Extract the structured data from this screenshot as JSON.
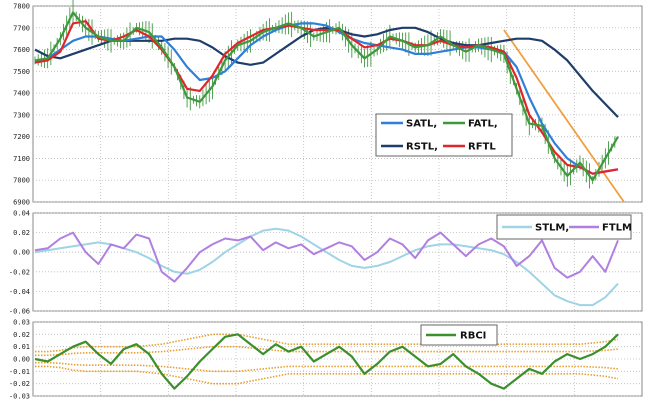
{
  "colors": {
    "satl": "#2f7fd8",
    "fatl": "#3c9a3c",
    "rstl": "#1f3d6b",
    "rftl": "#e0262b",
    "stlm": "#9fd3e6",
    "ftlm": "#b07fe0",
    "rbci": "#3b8f2c",
    "bands": "#e8a030",
    "trend": "#f0a040",
    "price": "#2c8a2c",
    "grid": "#bbbbbb"
  },
  "chart_data": [
    {
      "type": "line",
      "panel": "price",
      "ylim": [
        6900,
        7800
      ],
      "yticks": [
        "7800",
        "7700",
        "7600",
        "7500",
        "7400",
        "7300",
        "7200",
        "7100",
        "7000",
        "6900"
      ],
      "grid": true,
      "legend_position": "right",
      "series": [
        {
          "name": "SATL,",
          "key": "satl",
          "values": [
            7540,
            7560,
            7600,
            7640,
            7660,
            7660,
            7650,
            7640,
            7650,
            7660,
            7660,
            7600,
            7520,
            7460,
            7470,
            7500,
            7560,
            7620,
            7660,
            7690,
            7710,
            7720,
            7720,
            7710,
            7680,
            7650,
            7630,
            7620,
            7610,
            7600,
            7580,
            7580,
            7590,
            7600,
            7610,
            7610,
            7600,
            7590,
            7520,
            7380,
            7260,
            7170,
            7100,
            7060,
            7030,
            7040,
            7050
          ]
        },
        {
          "name": "FATL,",
          "key": "fatl",
          "values": [
            7550,
            7560,
            7650,
            7770,
            7700,
            7660,
            7640,
            7640,
            7700,
            7680,
            7610,
            7520,
            7380,
            7360,
            7430,
            7550,
            7620,
            7640,
            7680,
            7700,
            7720,
            7700,
            7660,
            7680,
            7700,
            7620,
            7560,
            7600,
            7660,
            7640,
            7610,
            7620,
            7660,
            7620,
            7590,
            7620,
            7600,
            7580,
            7420,
            7260,
            7250,
            7100,
            7020,
            7080,
            7000,
            7100,
            7200
          ]
        },
        {
          "name": "RSTL,",
          "key": "rstl",
          "values": [
            7600,
            7570,
            7560,
            7580,
            7600,
            7620,
            7640,
            7640,
            7640,
            7640,
            7640,
            7650,
            7650,
            7640,
            7610,
            7570,
            7540,
            7530,
            7540,
            7580,
            7620,
            7660,
            7690,
            7700,
            7690,
            7670,
            7660,
            7670,
            7690,
            7700,
            7700,
            7680,
            7650,
            7630,
            7620,
            7620,
            7630,
            7640,
            7650,
            7650,
            7640,
            7600,
            7550,
            7480,
            7410,
            7350,
            7290
          ]
        },
        {
          "name": "RFTL",
          "key": "rftl",
          "values": [
            7540,
            7550,
            7590,
            7720,
            7730,
            7650,
            7640,
            7660,
            7690,
            7660,
            7600,
            7520,
            7420,
            7410,
            7480,
            7580,
            7630,
            7660,
            7690,
            7700,
            7710,
            7700,
            7690,
            7690,
            7690,
            7650,
            7610,
            7620,
            7650,
            7640,
            7620,
            7620,
            7640,
            7620,
            7610,
            7620,
            7610,
            7590,
            7470,
            7300,
            7220,
            7130,
            7070,
            7060,
            7030,
            7040,
            7050
          ]
        }
      ]
    },
    {
      "type": "line",
      "panel": "oscillator",
      "ylim": [
        -0.06,
        0.04
      ],
      "yticks": [
        "0.04",
        "0.02",
        "0.00",
        "-0.02",
        "-0.04",
        "-0.06"
      ],
      "grid": true,
      "legend_position": "top-right",
      "series": [
        {
          "name": "STLM,",
          "key": "stlm",
          "values": [
            0.0,
            0.002,
            0.004,
            0.006,
            0.008,
            0.01,
            0.008,
            0.004,
            0.0,
            -0.006,
            -0.014,
            -0.02,
            -0.022,
            -0.018,
            -0.01,
            0.0,
            0.008,
            0.016,
            0.022,
            0.024,
            0.022,
            0.016,
            0.008,
            0.0,
            -0.008,
            -0.014,
            -0.016,
            -0.014,
            -0.01,
            -0.004,
            0.002,
            0.006,
            0.008,
            0.008,
            0.006,
            0.004,
            0.002,
            -0.002,
            -0.01,
            -0.02,
            -0.032,
            -0.044,
            -0.05,
            -0.054,
            -0.054,
            -0.046,
            -0.032
          ]
        },
        {
          "name": "FTLM",
          "key": "ftlm",
          "values": [
            0.002,
            0.004,
            0.014,
            0.02,
            0.0,
            -0.012,
            0.008,
            0.004,
            0.018,
            0.014,
            -0.02,
            -0.03,
            -0.016,
            0.0,
            0.008,
            0.014,
            0.012,
            0.016,
            0.002,
            0.01,
            0.004,
            0.008,
            -0.002,
            0.004,
            0.01,
            0.006,
            -0.008,
            0.0,
            0.014,
            0.008,
            -0.006,
            0.012,
            0.02,
            0.008,
            -0.004,
            0.008,
            0.014,
            0.006,
            -0.014,
            -0.004,
            0.012,
            -0.016,
            -0.026,
            -0.02,
            -0.004,
            -0.02,
            0.012
          ]
        }
      ]
    },
    {
      "type": "line",
      "panel": "rbci",
      "ylim": [
        -0.03,
        0.03
      ],
      "yticks": [
        "0.03",
        "0.02",
        "0.01",
        "0.00",
        "-0.01",
        "-0.02",
        "-0.03"
      ],
      "grid": true,
      "legend_position": "top-right",
      "series": [
        {
          "name": "RBCI",
          "key": "rbci",
          "values": [
            0.0,
            -0.002,
            0.004,
            0.01,
            0.014,
            0.004,
            -0.004,
            0.008,
            0.012,
            0.004,
            -0.012,
            -0.024,
            -0.014,
            -0.002,
            0.008,
            0.018,
            0.02,
            0.012,
            0.004,
            0.012,
            0.006,
            0.01,
            -0.002,
            0.004,
            0.01,
            0.002,
            -0.012,
            -0.004,
            0.006,
            0.01,
            0.002,
            -0.006,
            -0.004,
            0.004,
            -0.006,
            -0.012,
            -0.02,
            -0.024,
            -0.016,
            -0.008,
            -0.012,
            -0.002,
            0.004,
            0.0,
            0.004,
            0.01,
            0.02
          ]
        },
        {
          "name": "",
          "key": "bands",
          "values": [
            0.006,
            0.006,
            0.007,
            0.009,
            0.01,
            0.01,
            0.01,
            0.01,
            0.01,
            0.011,
            0.012,
            0.014,
            0.016,
            0.018,
            0.02,
            0.02,
            0.02,
            0.018,
            0.016,
            0.014,
            0.012,
            0.012,
            0.012,
            0.012,
            0.012,
            0.012,
            0.012,
            0.012,
            0.012,
            0.012,
            0.012,
            0.012,
            0.012,
            0.012,
            0.012,
            0.012,
            0.012,
            0.012,
            0.012,
            0.012,
            0.012,
            0.012,
            0.012,
            0.012,
            0.013,
            0.014,
            0.016
          ]
        }
      ]
    }
  ]
}
